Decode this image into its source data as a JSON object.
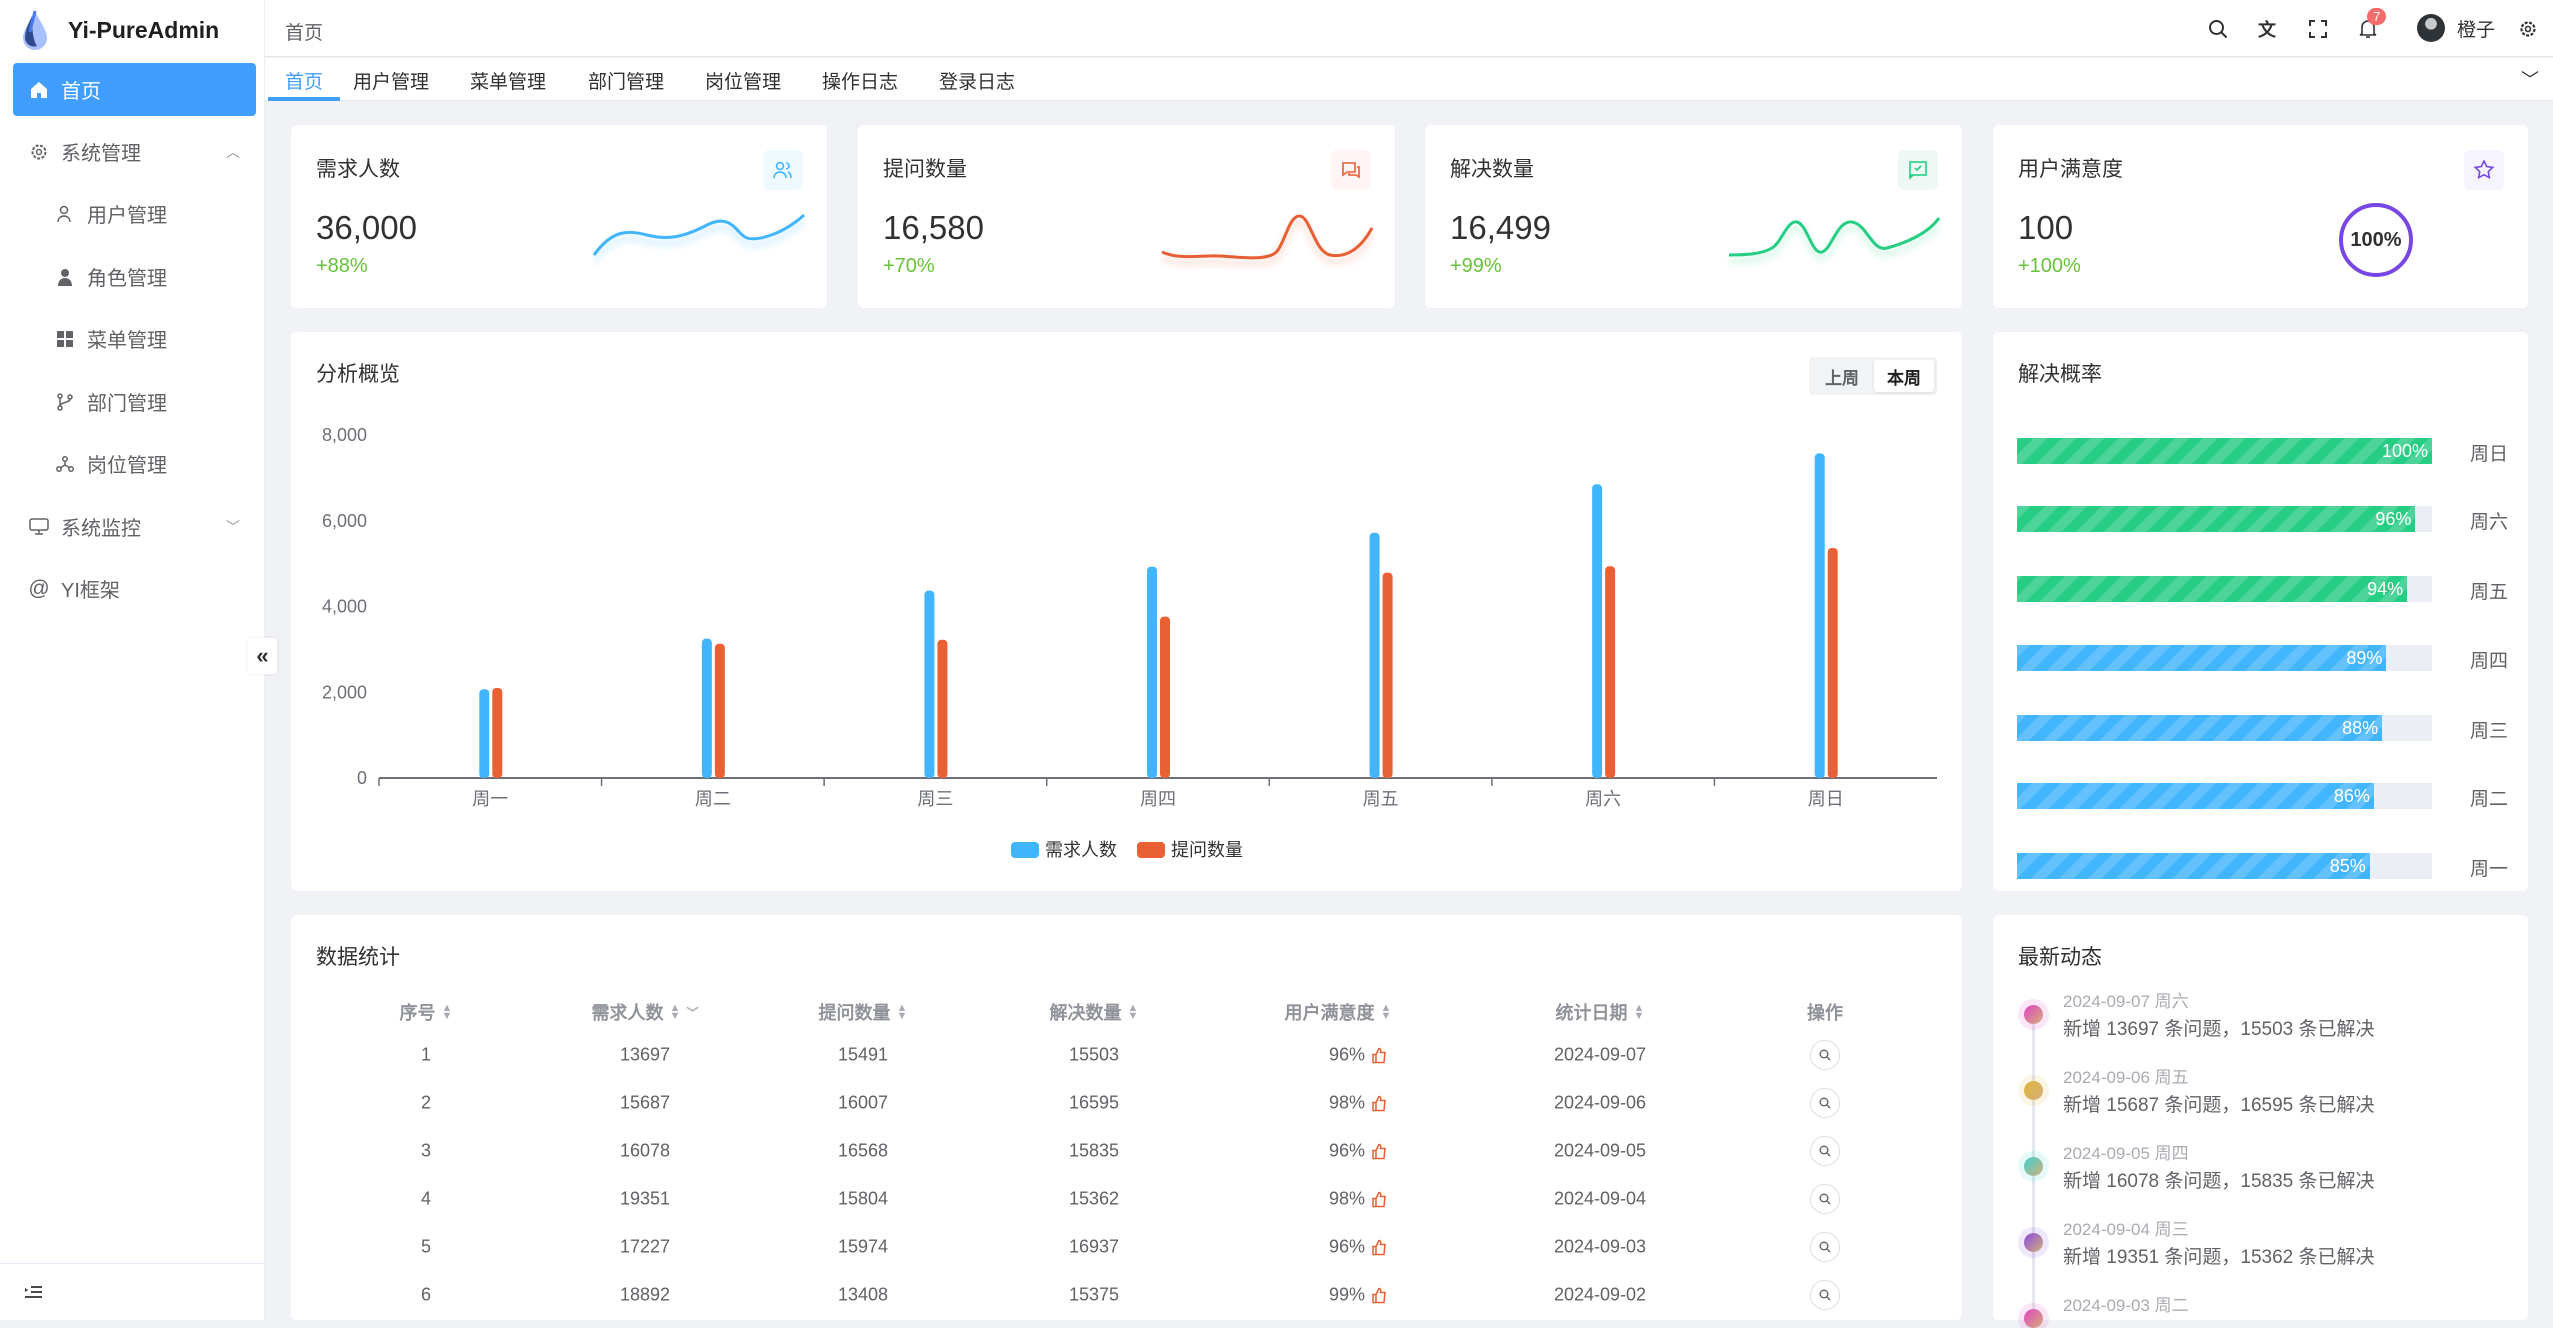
{
  "app": {
    "title": "Yi-PureAdmin"
  },
  "sidebar": {
    "items": [
      {
        "label": "首页",
        "icon": "home-icon",
        "active": true
      },
      {
        "label": "系统管理",
        "icon": "gear-icon",
        "expanded": true
      },
      {
        "label": "用户管理",
        "icon": "user-icon"
      },
      {
        "label": "角色管理",
        "icon": "role-icon"
      },
      {
        "label": "菜单管理",
        "icon": "grid-icon"
      },
      {
        "label": "部门管理",
        "icon": "branch-icon"
      },
      {
        "label": "岗位管理",
        "icon": "org-icon"
      },
      {
        "label": "系统监控",
        "icon": "monitor-icon"
      },
      {
        "label": "YI框架",
        "icon": "at-icon"
      }
    ],
    "collapse_glyph": "«"
  },
  "header": {
    "breadcrumb": "首页",
    "notification_count": "7",
    "user_name": "橙子"
  },
  "tabs": [
    {
      "label": "首页",
      "active": true
    },
    {
      "label": "用户管理"
    },
    {
      "label": "菜单管理"
    },
    {
      "label": "部门管理"
    },
    {
      "label": "岗位管理"
    },
    {
      "label": "操作日志"
    },
    {
      "label": "登录日志"
    }
  ],
  "stats": [
    {
      "title": "需求人数",
      "value": "36,000",
      "change": "+88%",
      "color": "#41b6ff",
      "icon": "users-icon"
    },
    {
      "title": "提问数量",
      "value": "16,580",
      "change": "+70%",
      "color": "#e85f33",
      "icon": "chat-icon"
    },
    {
      "title": "解决数量",
      "value": "16,499",
      "change": "+99%",
      "color": "#26ce83",
      "icon": "check-chat-icon"
    },
    {
      "title": "用户满意度",
      "value": "100",
      "change": "+100%",
      "color": "#7846e5",
      "icon": "star-icon",
      "ring_label": "100%",
      "ring_value": 100
    }
  ],
  "overview": {
    "title": "分析概览",
    "toggle": [
      "上周",
      "本周"
    ],
    "selected": "本周"
  },
  "chart_data": {
    "type": "bar",
    "categories": [
      "周一",
      "周二",
      "周三",
      "周四",
      "周五",
      "周六",
      "周日"
    ],
    "series": [
      {
        "name": "需求人数",
        "color": "#41b6ff",
        "values": [
          2070,
          3250,
          4370,
          4930,
          5720,
          6850,
          7570
        ]
      },
      {
        "name": "提问数量",
        "color": "#e86033",
        "values": [
          2100,
          3130,
          3225,
          3765,
          4790,
          4940,
          5365
        ]
      }
    ],
    "ylim": [
      0,
      8000
    ],
    "yticks": [
      "0",
      "2,000",
      "4,000",
      "6,000",
      "8,000"
    ],
    "legend": "bottom"
  },
  "solve_rate": {
    "title": "解决概率",
    "items": [
      {
        "day": "周日",
        "value": 100,
        "label": "100%"
      },
      {
        "day": "周六",
        "value": 96,
        "label": "96%"
      },
      {
        "day": "周五",
        "value": 94,
        "label": "94%"
      },
      {
        "day": "周四",
        "value": 89,
        "label": "89%"
      },
      {
        "day": "周三",
        "value": 88,
        "label": "88%"
      },
      {
        "day": "周二",
        "value": 86,
        "label": "86%"
      },
      {
        "day": "周一",
        "value": 85,
        "label": "85%"
      }
    ],
    "colors": {
      "high": "#26ce83",
      "low": "#41b6ff"
    }
  },
  "table": {
    "title": "数据统计",
    "columns": [
      "序号",
      "需求人数",
      "提问数量",
      "解决数量",
      "用户满意度",
      "统计日期",
      "操作"
    ],
    "rows": [
      [
        "1",
        "13697",
        "15491",
        "15503",
        "96%",
        "2024-09-07"
      ],
      [
        "2",
        "15687",
        "16007",
        "16595",
        "98%",
        "2024-09-06"
      ],
      [
        "3",
        "16078",
        "16568",
        "15835",
        "96%",
        "2024-09-05"
      ],
      [
        "4",
        "19351",
        "15804",
        "15362",
        "98%",
        "2024-09-04"
      ],
      [
        "5",
        "17227",
        "15974",
        "16937",
        "96%",
        "2024-09-03"
      ],
      [
        "6",
        "18892",
        "13408",
        "15375",
        "99%",
        "2024-09-02"
      ]
    ]
  },
  "timeline": {
    "title": "最新动态",
    "items": [
      {
        "date": "2024-09-07 周六",
        "text": "新增 13697 条问题，15503 条已解决",
        "color": "#e043c0"
      },
      {
        "date": "2024-09-06 周五",
        "text": "新增 15687 条问题，16595 条已解决",
        "color": "#e0b43a"
      },
      {
        "date": "2024-09-05 周四",
        "text": "新增 16078 条问题，15835 条已解决",
        "color": "#3ccfd0"
      },
      {
        "date": "2024-09-04 周三",
        "text": "新增 19351 条问题，15362 条已解决",
        "color": "#8a4be0"
      },
      {
        "date": "2024-09-03 周二",
        "text": "",
        "color": "#e043c0"
      }
    ]
  }
}
